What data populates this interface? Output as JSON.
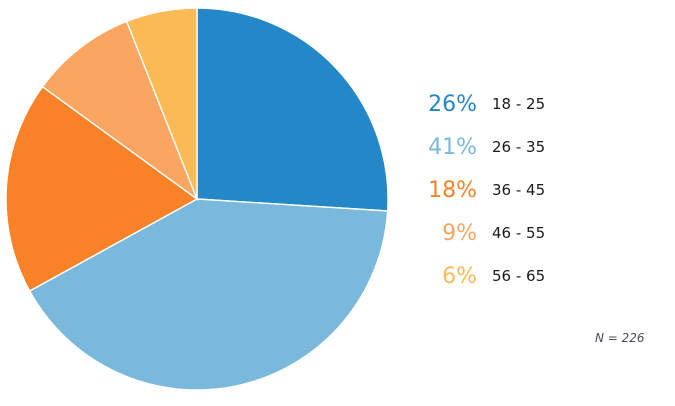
{
  "chart_data": {
    "type": "pie",
    "title": "",
    "start_angle_deg": 0,
    "direction": "clockwise",
    "legend_position": "right",
    "background_color": "#ffffff",
    "slice_separator_color": "#ffffff",
    "segments": [
      {
        "label": "18 - 25",
        "percent": 26,
        "value_label": "26%",
        "color": "#2387c8"
      },
      {
        "label": "26 - 35",
        "percent": 41,
        "value_label": "41%",
        "color": "#7ab8dc"
      },
      {
        "label": "36 - 45",
        "percent": 18,
        "value_label": "18%",
        "color": "#f98228"
      },
      {
        "label": "46 - 55",
        "percent": 9,
        "value_label": "9%",
        "color": "#faa561"
      },
      {
        "label": "56 - 65",
        "percent": 6,
        "value_label": "6%",
        "color": "#fabb57"
      }
    ],
    "sample_note": "N = 226",
    "sample_note_color": "#4a4d57",
    "label_text_color": "#1a1a1a"
  }
}
